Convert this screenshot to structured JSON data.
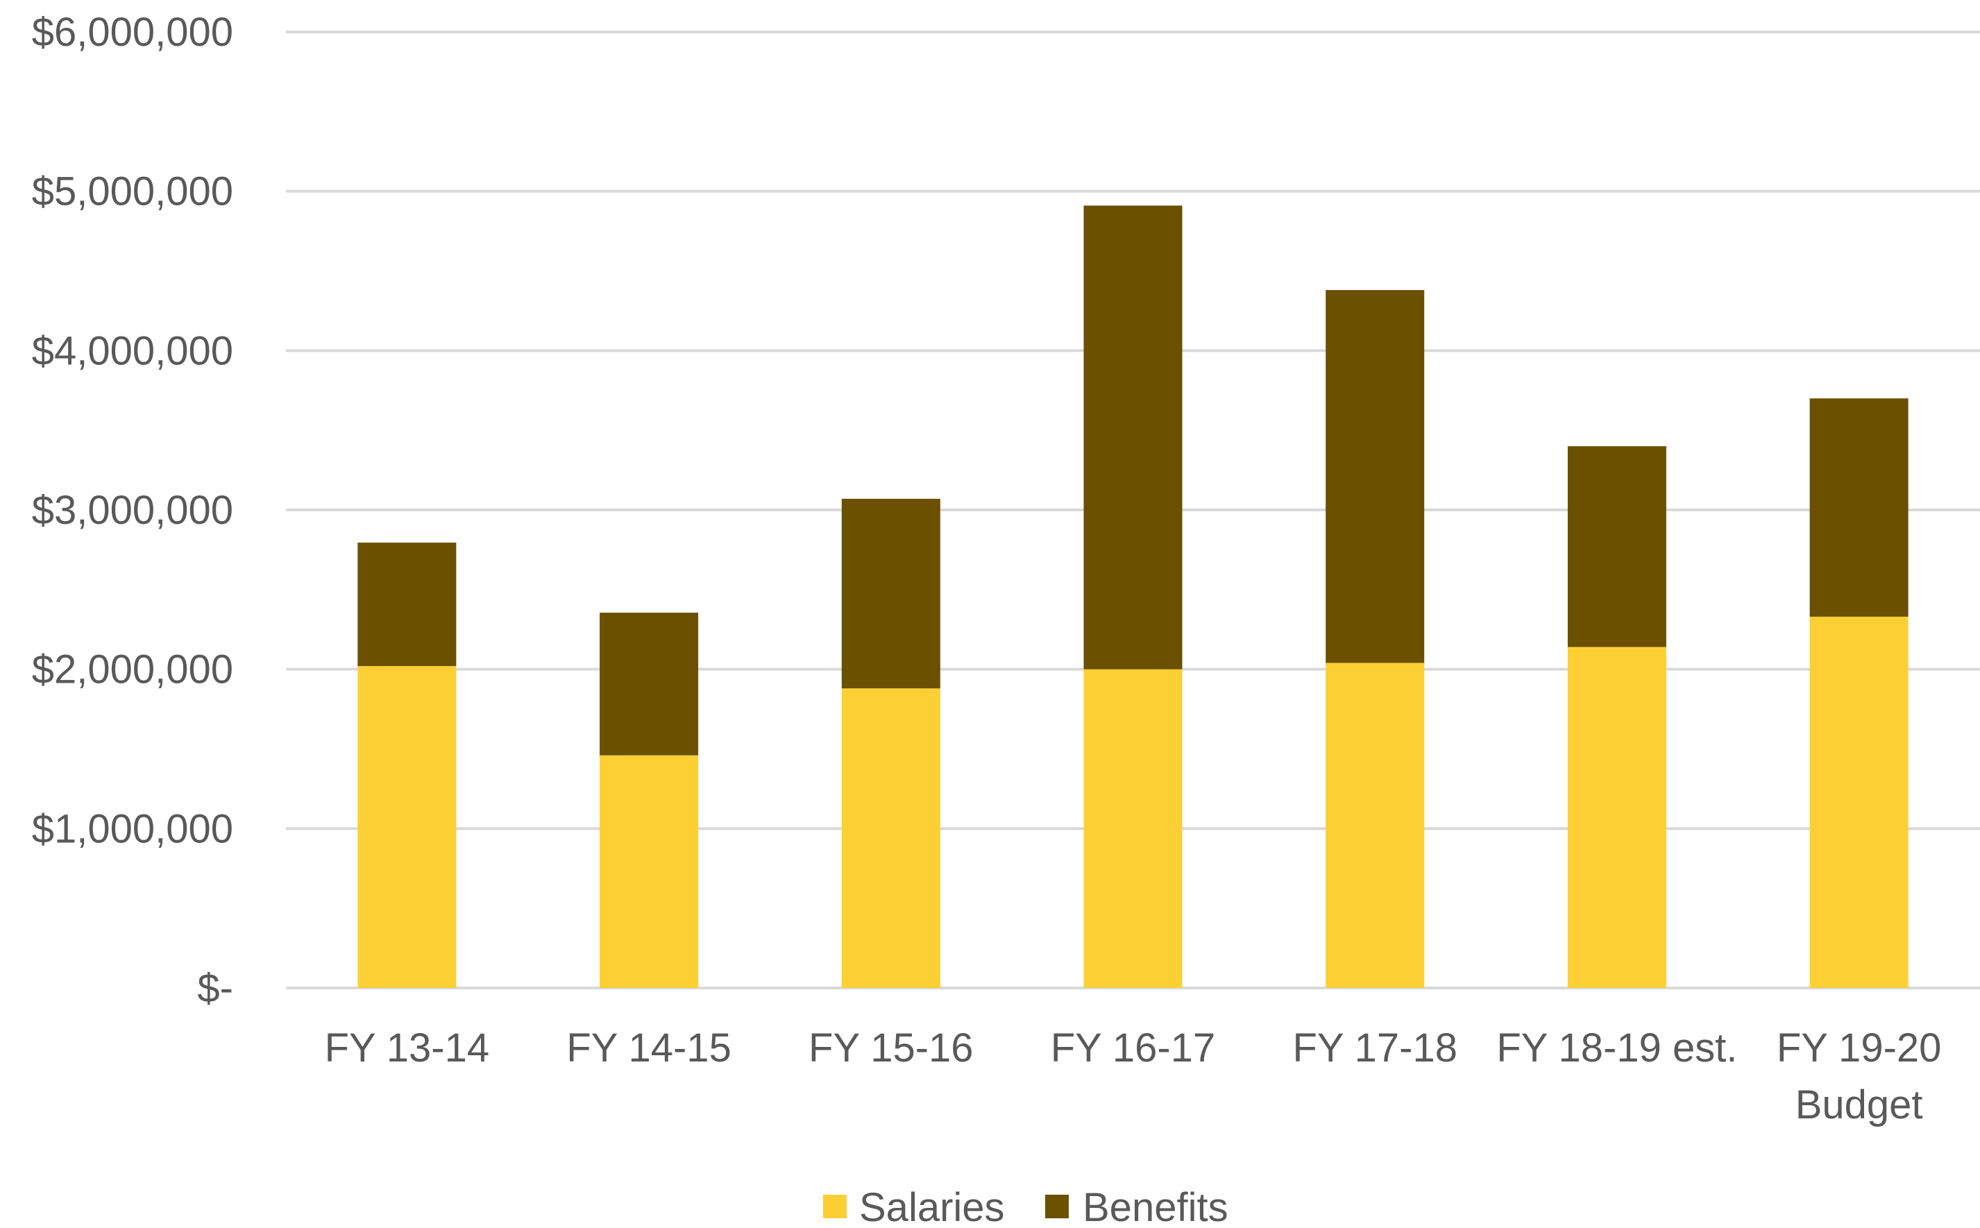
{
  "chart_data": {
    "type": "bar",
    "stacked": true,
    "title": "",
    "xlabel": "",
    "ylabel": "",
    "categories": [
      "FY 13-14",
      "FY 14-15",
      "FY 15-16",
      "FY 16-17",
      "FY 17-18",
      "FY 18-19 est.",
      "FY 19-20 Budget"
    ],
    "category_lines": [
      [
        "FY 13-14"
      ],
      [
        "FY 14-15"
      ],
      [
        "FY 15-16"
      ],
      [
        "FY 16-17"
      ],
      [
        "FY 17-18"
      ],
      [
        "FY 18-19 est."
      ],
      [
        "FY 19-20",
        "Budget"
      ]
    ],
    "series": [
      {
        "name": "Salaries",
        "color": "#FCCF34",
        "values": [
          2020000,
          1460000,
          1880000,
          2000000,
          2040000,
          2140000,
          2330000
        ]
      },
      {
        "name": "Benefits",
        "color": "#6B5000",
        "values": [
          775000,
          895000,
          1190000,
          2910000,
          2340000,
          1260000,
          1370000
        ]
      }
    ],
    "ylim": [
      0,
      6000000
    ],
    "yticks": [
      0,
      1000000,
      2000000,
      3000000,
      4000000,
      5000000,
      6000000
    ],
    "ytick_labels": [
      "$-",
      "$1,000,000",
      "$2,000,000",
      "$3,000,000",
      "$4,000,000",
      "$5,000,000",
      "$6,000,000"
    ],
    "grid": true,
    "legend_position": "bottom-center",
    "colors": {
      "gridline": "#D9D9D9",
      "text": "#595959"
    }
  }
}
